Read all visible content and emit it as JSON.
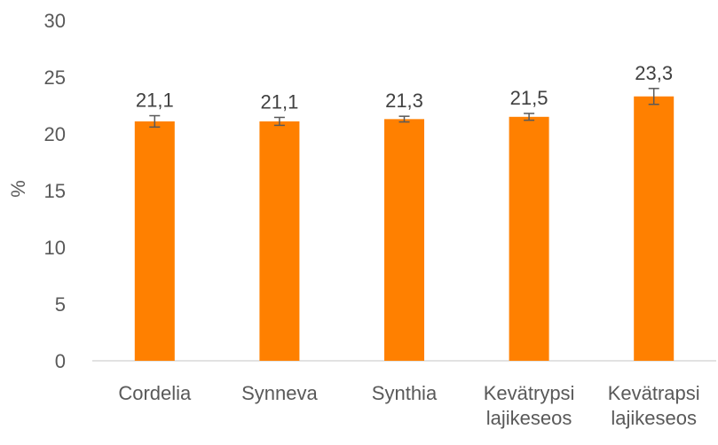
{
  "chart_data": {
    "type": "bar",
    "title": "",
    "xlabel": "",
    "ylabel": "%",
    "ylim": [
      0,
      30
    ],
    "yticks": [
      0,
      5,
      10,
      15,
      20,
      25,
      30
    ],
    "ytick_labels": [
      "0",
      "5",
      "10",
      "15",
      "20",
      "25",
      "30"
    ],
    "categories": [
      [
        "Cordelia"
      ],
      [
        "Synneva"
      ],
      [
        "Synthia"
      ],
      [
        "Kevätrypsi",
        "lajikeseos"
      ],
      [
        "Kevätrapsi",
        "lajikeseos"
      ]
    ],
    "values": [
      21.1,
      21.1,
      21.3,
      21.5,
      23.3
    ],
    "data_labels": [
      "21,1",
      "21,1",
      "21,3",
      "21,5",
      "23,3"
    ],
    "error": [
      0.5,
      0.35,
      0.25,
      0.3,
      0.7
    ],
    "grid": false,
    "legend": "none",
    "colors": {
      "bar": "#ff8000",
      "error_bar": "#595959",
      "axis": "#d9d9d9",
      "text": "#595959",
      "data_label": "#404040"
    }
  }
}
